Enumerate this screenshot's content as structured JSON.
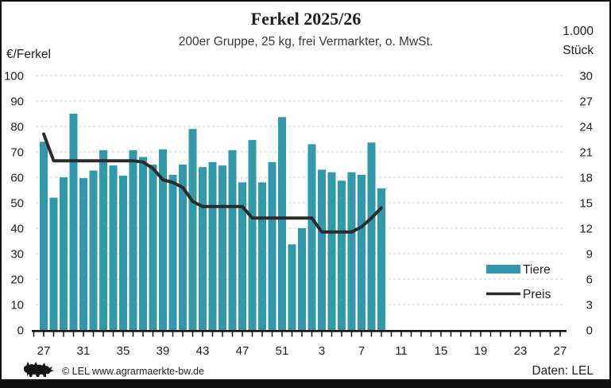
{
  "title": "Ferkel 2025/26",
  "subtitle": "200er Gruppe, 25 kg, frei Vermarkter, o. MwSt.",
  "left_axis": {
    "unit_label": "€/Ferkel",
    "min": 0,
    "max": 100,
    "step": 10
  },
  "right_axis": {
    "unit_label_line1": "1.000",
    "unit_label_line2": "Stück",
    "min": 0,
    "max": 30,
    "step": 3
  },
  "legend": {
    "bar_label": "Tiere",
    "line_label": "Preis"
  },
  "footer": {
    "copyright": "© LEL www.agrarmaerkte-bw.de",
    "source": "Daten: LEL"
  },
  "colors": {
    "bar": "#3299aa",
    "line": "#2b2b2b",
    "grid": "#d8d8d8",
    "axis": "#111111",
    "text": "#1f1f1f"
  },
  "chart_data": {
    "type": "combo",
    "title": "Ferkel 2025/26",
    "subtitle": "200er Gruppe, 25 kg, frei Vermarkter, o. MwSt.",
    "x_axis_weeks": [
      27,
      28,
      29,
      30,
      31,
      32,
      33,
      34,
      35,
      36,
      37,
      38,
      39,
      40,
      41,
      42,
      43,
      44,
      45,
      46,
      47,
      48,
      49,
      50,
      51,
      52,
      1,
      2,
      3,
      4,
      5,
      6,
      7,
      8,
      9,
      10,
      11,
      12,
      13,
      14,
      15,
      16,
      17,
      18,
      19,
      20,
      21,
      22,
      23,
      24,
      25,
      26,
      27
    ],
    "x_tick_labels": [
      "27",
      "31",
      "35",
      "39",
      "43",
      "47",
      "51",
      "3",
      "7",
      "11",
      "15",
      "19",
      "23",
      "27"
    ],
    "grid": true,
    "legend_position": "right-middle",
    "left_ylim": [
      0,
      100
    ],
    "right_ylim": [
      0,
      30
    ],
    "series": [
      {
        "name": "Tiere",
        "type": "bar",
        "axis": "right",
        "unit": "1.000 Stück",
        "weeks": [
          27,
          28,
          29,
          30,
          31,
          32,
          33,
          34,
          35,
          36,
          37,
          38,
          39,
          40,
          41,
          42,
          43,
          44,
          45,
          46,
          47,
          48,
          49,
          50,
          51,
          52,
          1,
          2,
          3,
          4,
          5,
          6,
          7,
          8,
          9
        ],
        "values": [
          22.2,
          15.6,
          18.0,
          25.5,
          17.9,
          18.8,
          21.2,
          19.4,
          18.2,
          21.2,
          20.4,
          19.5,
          21.3,
          18.3,
          19.5,
          23.7,
          19.2,
          19.8,
          19.4,
          21.2,
          17.4,
          22.4,
          17.4,
          19.8,
          25.1,
          10.1,
          12.0,
          21.9,
          18.9,
          18.6,
          17.6,
          18.6,
          18.3,
          22.1,
          16.7
        ]
      },
      {
        "name": "Preis",
        "type": "line",
        "axis": "left",
        "unit": "€/Ferkel",
        "weeks": [
          27,
          28,
          29,
          30,
          31,
          32,
          33,
          34,
          35,
          36,
          37,
          38,
          39,
          40,
          41,
          42,
          43,
          44,
          45,
          46,
          47,
          48,
          49,
          50,
          51,
          52,
          1,
          2,
          3,
          4,
          5,
          6,
          7,
          8,
          9
        ],
        "values": [
          77,
          66.5,
          66.5,
          66.5,
          66.5,
          66.5,
          66.5,
          66.5,
          66.5,
          66.5,
          66,
          63.5,
          59,
          58,
          56,
          50.5,
          48.5,
          48.5,
          48.5,
          48.5,
          48.5,
          44,
          44,
          44,
          44,
          44,
          44,
          44,
          38.5,
          38.5,
          38.5,
          38.5,
          40.5,
          44,
          48
        ]
      }
    ]
  }
}
